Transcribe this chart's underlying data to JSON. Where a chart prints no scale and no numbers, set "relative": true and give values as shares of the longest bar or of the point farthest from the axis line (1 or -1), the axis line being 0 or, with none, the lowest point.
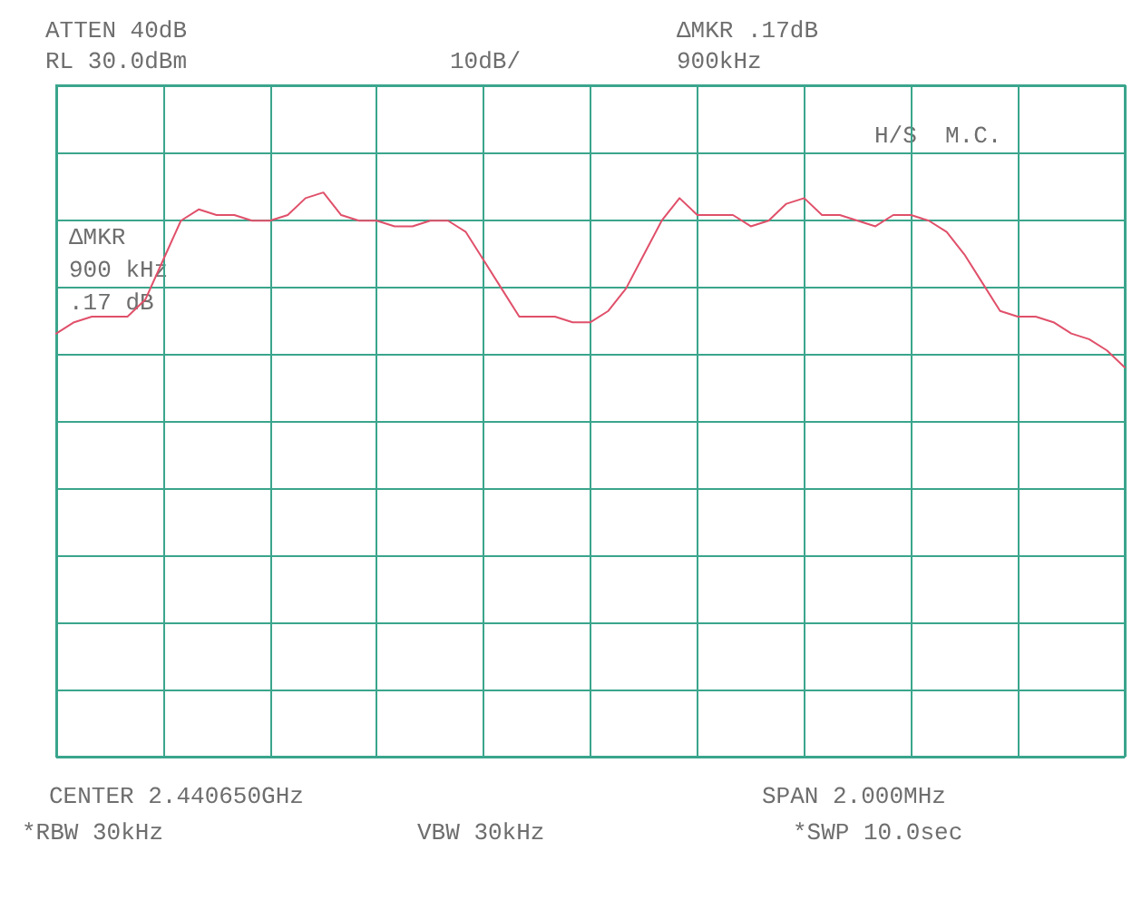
{
  "chart_data": {
    "type": "line",
    "color": "#e0506a",
    "relative": true,
    "categories": [
      null,
      null,
      null,
      null,
      null,
      null,
      null,
      null,
      null,
      null,
      null,
      null,
      null,
      null,
      null,
      null,
      null,
      null,
      null,
      null,
      null,
      null,
      null,
      null,
      null,
      null,
      null,
      null,
      null,
      null,
      null,
      null,
      null,
      null,
      null,
      null,
      null,
      null,
      null,
      null,
      null,
      null,
      null,
      null,
      null,
      null,
      null,
      null,
      null,
      null,
      null,
      null,
      null,
      null,
      null,
      null,
      null,
      null,
      null,
      null,
      null
    ],
    "values": [
      0.75,
      0.77,
      0.78,
      0.78,
      0.78,
      0.81,
      0.88,
      0.95,
      0.97,
      0.96,
      0.96,
      0.95,
      0.95,
      0.96,
      0.99,
      1,
      0.96,
      0.95,
      0.95,
      0.94,
      0.94,
      0.95,
      0.95,
      0.93,
      0.88,
      0.83,
      0.78,
      0.78,
      0.78,
      0.77,
      0.77,
      0.79,
      0.83,
      0.89,
      0.95,
      0.99,
      0.96,
      0.96,
      0.96,
      0.94,
      0.95,
      0.98,
      0.99,
      0.96,
      0.96,
      0.95,
      0.94,
      0.96,
      0.96,
      0.95,
      0.93,
      0.89,
      0.84,
      0.79,
      0.78,
      0.78,
      0.77,
      0.75,
      0.74,
      0.72,
      0.69
    ],
    "grid": true,
    "marker": "none",
    "line_style": "solid",
    "annotations": [
      "ATTEN 40dB",
      "RL 30.0dBm",
      "10dB/",
      "ΔMKR .17dB",
      "900kHz",
      "H/S  M.C.",
      "ΔMKR\n900 kHz\n.17 dB",
      "CENTER 2.440650GHz",
      "SPAN 2.000MHz",
      "*RBW 30kHz",
      "VBW 30kHz",
      "*SWP 10.0sec"
    ]
  }
}
